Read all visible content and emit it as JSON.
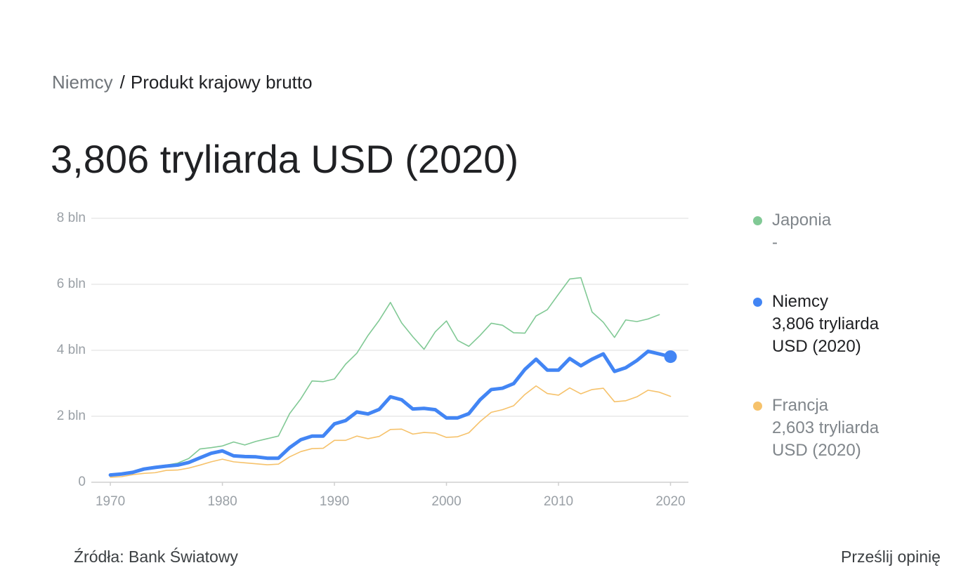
{
  "breadcrumb": {
    "parent": "Niemcy",
    "separator": "/",
    "current": "Produkt krajowy brutto"
  },
  "headline": "3,806 tryliarda USD (2020)",
  "chart_data": {
    "type": "line",
    "x": [
      1970,
      1971,
      1972,
      1973,
      1974,
      1975,
      1976,
      1977,
      1978,
      1979,
      1980,
      1981,
      1982,
      1983,
      1984,
      1985,
      1986,
      1987,
      1988,
      1989,
      1990,
      1991,
      1992,
      1993,
      1994,
      1995,
      1996,
      1997,
      1998,
      1999,
      2000,
      2001,
      2002,
      2003,
      2004,
      2005,
      2006,
      2007,
      2008,
      2009,
      2010,
      2011,
      2012,
      2013,
      2014,
      2015,
      2016,
      2017,
      2018,
      2019,
      2020
    ],
    "xlim": [
      1968.3,
      2021.6
    ],
    "xticks": [
      1970,
      1980,
      1990,
      2000,
      2010,
      2020
    ],
    "ylim": [
      0,
      8
    ],
    "yticks": [
      0,
      {
        "value": 2,
        "label": "2 bln"
      },
      {
        "value": 4,
        "label": "4 bln"
      },
      {
        "value": 6,
        "label": "6 bln"
      },
      {
        "value": 8,
        "label": "8 bln"
      }
    ],
    "grid": true,
    "highlighted_series": 1,
    "series": [
      {
        "name": "Japonia",
        "color": "#81c995",
        "latest_label": "-",
        "values": [
          0.21,
          0.24,
          0.32,
          0.43,
          0.48,
          0.52,
          0.58,
          0.72,
          1.01,
          1.05,
          1.1,
          1.22,
          1.13,
          1.24,
          1.32,
          1.4,
          2.08,
          2.53,
          3.07,
          3.05,
          3.13,
          3.58,
          3.91,
          4.45,
          4.91,
          5.45,
          4.83,
          4.41,
          4.03,
          4.56,
          4.89,
          4.3,
          4.12,
          4.45,
          4.82,
          4.76,
          4.53,
          4.52,
          5.04,
          5.23,
          5.7,
          6.16,
          6.2,
          5.16,
          4.85,
          4.39,
          4.92,
          4.87,
          4.95,
          5.08,
          null
        ]
      },
      {
        "name": "Niemcy",
        "color": "#4285f4",
        "latest_label": "3,806 tryliarda USD (2020)",
        "values": [
          0.22,
          0.25,
          0.3,
          0.4,
          0.45,
          0.49,
          0.52,
          0.6,
          0.74,
          0.88,
          0.95,
          0.8,
          0.78,
          0.77,
          0.73,
          0.73,
          1.05,
          1.29,
          1.4,
          1.4,
          1.77,
          1.87,
          2.13,
          2.07,
          2.21,
          2.59,
          2.5,
          2.22,
          2.24,
          2.2,
          1.95,
          1.95,
          2.08,
          2.5,
          2.81,
          2.85,
          2.99,
          3.42,
          3.73,
          3.4,
          3.4,
          3.75,
          3.53,
          3.73,
          3.89,
          3.36,
          3.47,
          3.69,
          3.97,
          3.89,
          3.806
        ]
      },
      {
        "name": "Francja",
        "color": "#f6c26b",
        "latest_label": "2,603 tryliarda USD (2020)",
        "values": [
          0.15,
          0.17,
          0.23,
          0.27,
          0.29,
          0.36,
          0.37,
          0.43,
          0.52,
          0.62,
          0.7,
          0.62,
          0.59,
          0.56,
          0.53,
          0.55,
          0.77,
          0.93,
          1.02,
          1.03,
          1.27,
          1.27,
          1.4,
          1.32,
          1.39,
          1.6,
          1.61,
          1.46,
          1.51,
          1.49,
          1.36,
          1.38,
          1.5,
          1.84,
          2.12,
          2.2,
          2.32,
          2.66,
          2.92,
          2.69,
          2.64,
          2.86,
          2.68,
          2.81,
          2.85,
          2.44,
          2.47,
          2.59,
          2.79,
          2.73,
          2.603
        ]
      }
    ]
  },
  "footer": {
    "source": "Źródła: Bank Światowy",
    "feedback": "Prześlij opinię"
  }
}
